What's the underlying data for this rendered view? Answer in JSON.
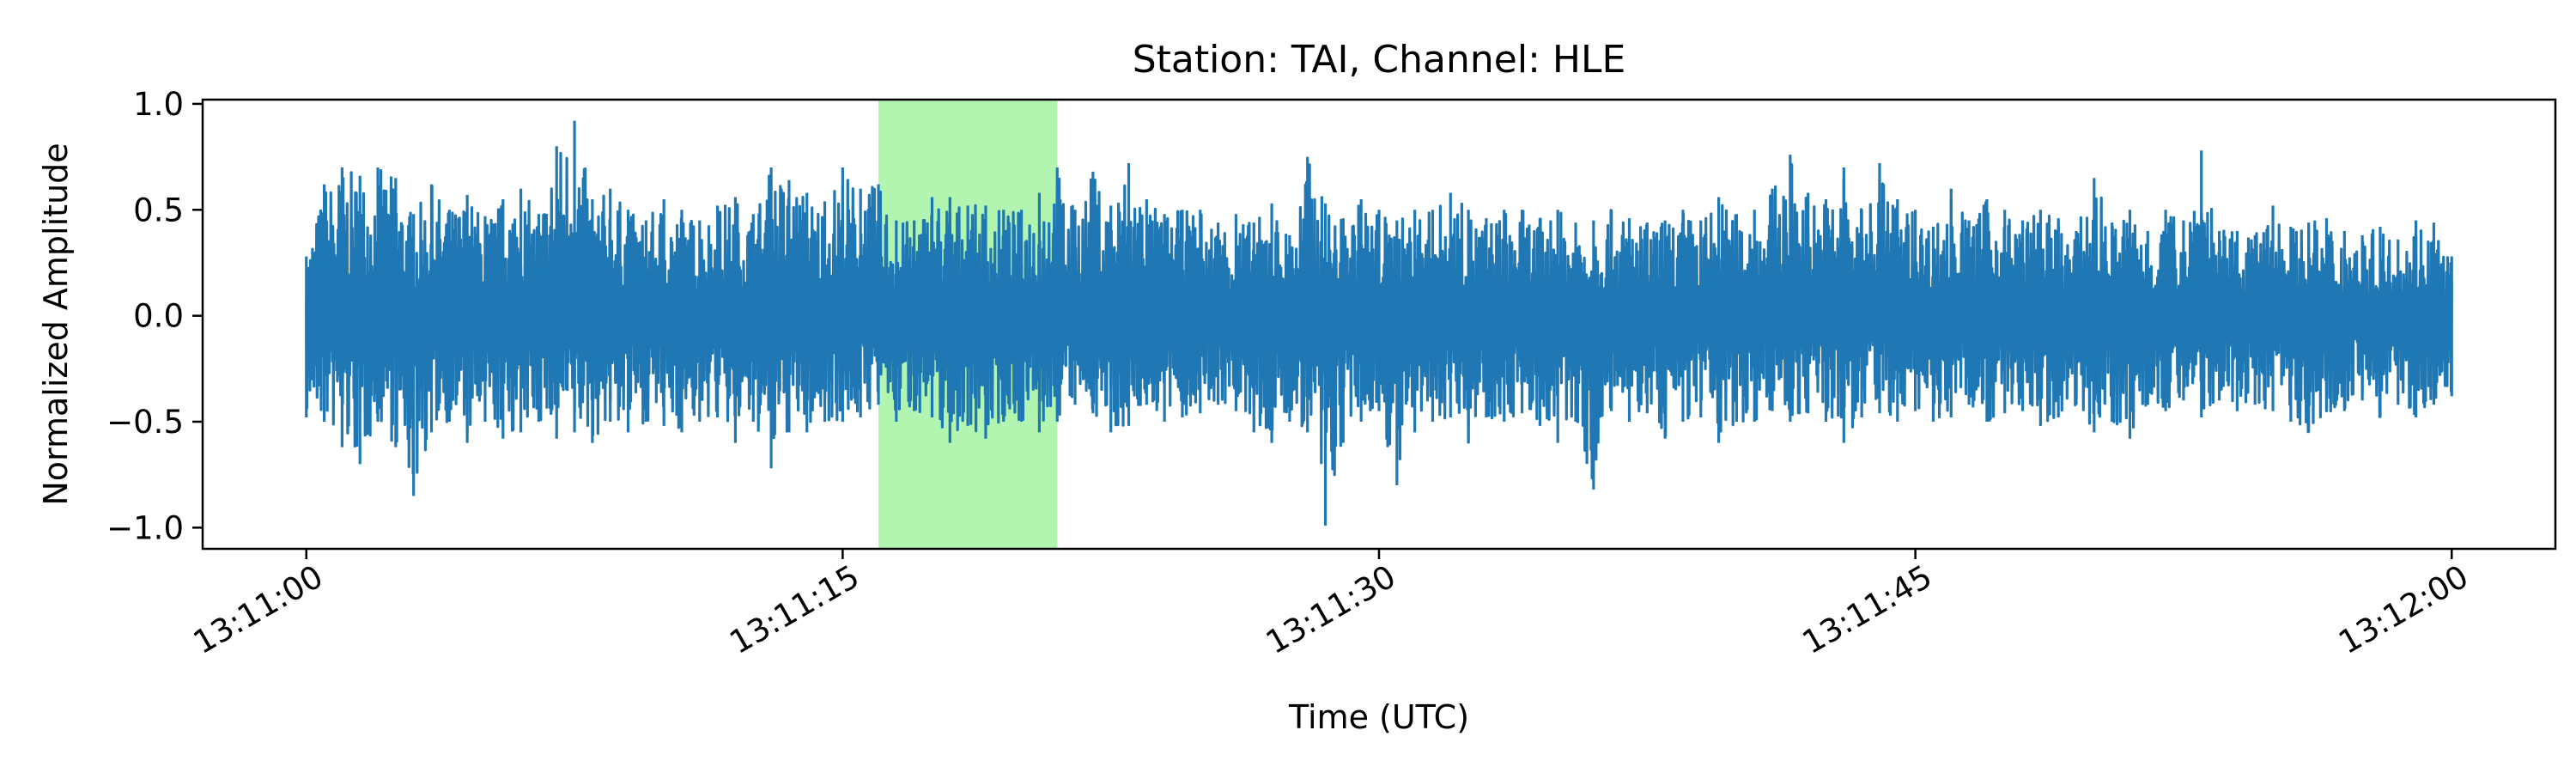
{
  "chart_data": {
    "type": "line",
    "title": "Station: TAI, Channel: HLE",
    "xlabel": "Time (UTC)",
    "ylabel": "Normalized Amplitude",
    "xlim_seconds": [
      -2.9,
      62.9
    ],
    "x_start_label": "13:11:00",
    "ylim": [
      -1.1,
      1.02
    ],
    "x_ticks": [
      {
        "label": "13:11:00",
        "seconds": 0
      },
      {
        "label": "13:11:15",
        "seconds": 15
      },
      {
        "label": "13:11:30",
        "seconds": 30
      },
      {
        "label": "13:11:45",
        "seconds": 45
      },
      {
        "label": "13:12:00",
        "seconds": 60
      }
    ],
    "y_ticks": [
      {
        "label": "1.0",
        "value": 1.0
      },
      {
        "label": "0.5",
        "value": 0.5
      },
      {
        "label": "0.0",
        "value": 0.0
      },
      {
        "label": "−0.5",
        "value": -0.5
      },
      {
        "label": "−1.0",
        "value": -1.0
      }
    ],
    "highlight": {
      "start_seconds": 16.0,
      "end_seconds": 21.0,
      "color": "#b2f5b0"
    },
    "series": [
      {
        "color": "#1f77b4",
        "x_seconds": [
          0,
          0.5,
          1,
          1.5,
          2,
          2.5,
          3,
          3.5,
          4,
          4.5,
          5,
          5.5,
          6,
          6.5,
          7,
          7.5,
          8,
          8.5,
          9,
          9.5,
          10,
          10.5,
          11,
          11.5,
          12,
          12.5,
          13,
          13.5,
          14,
          14.5,
          15,
          15.5,
          16,
          16.5,
          17,
          17.5,
          18,
          18.5,
          19,
          19.5,
          20,
          20.5,
          21,
          21.5,
          22,
          22.5,
          23,
          23.5,
          24,
          24.5,
          25,
          25.5,
          26,
          26.5,
          27,
          27.5,
          28,
          28.5,
          29,
          29.5,
          30,
          30.5,
          31,
          31.5,
          32,
          32.5,
          33,
          33.5,
          34,
          34.5,
          35,
          35.5,
          36,
          36.5,
          37,
          37.5,
          38,
          38.5,
          39,
          39.5,
          40,
          40.5,
          41,
          41.5,
          42,
          42.5,
          43,
          43.5,
          44,
          44.5,
          45,
          45.5,
          46,
          46.5,
          47,
          47.5,
          48,
          48.5,
          49,
          49.5,
          50,
          50.5,
          51,
          51.5,
          52,
          52.5,
          53,
          53.5,
          54,
          54.5,
          55,
          55.5,
          56,
          56.5,
          57,
          57.5,
          58,
          58.5,
          59,
          59.5,
          60
        ],
        "upper": [
          0.28,
          0.62,
          0.7,
          0.66,
          0.7,
          0.65,
          0.48,
          0.62,
          0.5,
          0.57,
          0.47,
          0.55,
          0.6,
          0.48,
          0.8,
          0.92,
          0.55,
          0.6,
          0.5,
          0.45,
          0.55,
          0.5,
          0.45,
          0.52,
          0.56,
          0.48,
          0.7,
          0.64,
          0.58,
          0.54,
          0.7,
          0.6,
          0.62,
          0.45,
          0.45,
          0.56,
          0.56,
          0.52,
          0.52,
          0.5,
          0.5,
          0.58,
          0.7,
          0.5,
          0.68,
          0.52,
          0.72,
          0.55,
          0.48,
          0.5,
          0.5,
          0.44,
          0.48,
          0.44,
          0.53,
          0.38,
          0.75,
          0.53,
          0.46,
          0.55,
          0.5,
          0.45,
          0.5,
          0.5,
          0.58,
          0.5,
          0.46,
          0.5,
          0.5,
          0.46,
          0.5,
          0.44,
          0.45,
          0.5,
          0.46,
          0.44,
          0.45,
          0.5,
          0.45,
          0.56,
          0.48,
          0.5,
          0.6,
          0.76,
          0.58,
          0.55,
          0.7,
          0.5,
          0.72,
          0.55,
          0.5,
          0.42,
          0.6,
          0.45,
          0.55,
          0.5,
          0.45,
          0.5,
          0.46,
          0.4,
          0.65,
          0.44,
          0.5,
          0.4,
          0.5,
          0.45,
          0.78,
          0.4,
          0.4,
          0.38,
          0.52,
          0.42,
          0.44,
          0.46,
          0.4,
          0.38,
          0.42,
          0.36,
          0.45,
          0.44,
          0.28
        ],
        "lower": [
          -0.48,
          -0.5,
          -0.62,
          -0.7,
          -0.5,
          -0.62,
          -0.85,
          -0.55,
          -0.5,
          -0.6,
          -0.5,
          -0.58,
          -0.55,
          -0.5,
          -0.58,
          -0.55,
          -0.6,
          -0.5,
          -0.55,
          -0.5,
          -0.52,
          -0.55,
          -0.5,
          -0.48,
          -0.6,
          -0.5,
          -0.72,
          -0.55,
          -0.55,
          -0.5,
          -0.5,
          -0.48,
          -0.42,
          -0.5,
          -0.45,
          -0.48,
          -0.6,
          -0.52,
          -0.58,
          -0.5,
          -0.5,
          -0.55,
          -0.5,
          -0.42,
          -0.46,
          -0.55,
          -0.52,
          -0.42,
          -0.5,
          -0.48,
          -0.46,
          -0.42,
          -0.45,
          -0.55,
          -0.6,
          -0.5,
          -0.55,
          -0.99,
          -0.6,
          -0.5,
          -0.45,
          -0.8,
          -0.55,
          -0.5,
          -0.48,
          -0.6,
          -0.48,
          -0.5,
          -0.46,
          -0.52,
          -0.6,
          -0.5,
          -0.82,
          -0.45,
          -0.5,
          -0.46,
          -0.58,
          -0.5,
          -0.48,
          -0.6,
          -0.5,
          -0.5,
          -0.45,
          -0.5,
          -0.46,
          -0.5,
          -0.6,
          -0.48,
          -0.46,
          -0.5,
          -0.45,
          -0.5,
          -0.48,
          -0.42,
          -0.5,
          -0.46,
          -0.45,
          -0.52,
          -0.48,
          -0.42,
          -0.55,
          -0.5,
          -0.58,
          -0.42,
          -0.45,
          -0.4,
          -0.48,
          -0.4,
          -0.45,
          -0.42,
          -0.45,
          -0.5,
          -0.55,
          -0.45,
          -0.45,
          -0.4,
          -0.48,
          -0.42,
          -0.48,
          -0.42,
          -0.38
        ]
      }
    ]
  }
}
